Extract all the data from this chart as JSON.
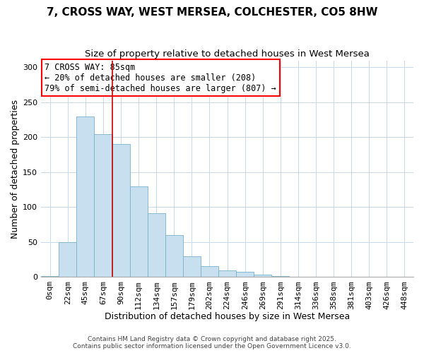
{
  "title": "7, CROSS WAY, WEST MERSEA, COLCHESTER, CO5 8HW",
  "subtitle": "Size of property relative to detached houses in West Mersea",
  "xlabel": "Distribution of detached houses by size in West Mersea",
  "ylabel": "Number of detached properties",
  "bar_labels": [
    "0sqm",
    "22sqm",
    "45sqm",
    "67sqm",
    "90sqm",
    "112sqm",
    "134sqm",
    "157sqm",
    "179sqm",
    "202sqm",
    "224sqm",
    "246sqm",
    "269sqm",
    "291sqm",
    "314sqm",
    "336sqm",
    "358sqm",
    "381sqm",
    "403sqm",
    "426sqm",
    "448sqm"
  ],
  "bar_values": [
    1,
    50,
    230,
    205,
    190,
    130,
    91,
    60,
    30,
    16,
    10,
    8,
    4,
    1,
    0.5,
    0.2,
    0,
    0,
    0,
    0,
    0
  ],
  "bar_color": "#c8dff0",
  "bar_edgecolor": "#7ab0cc",
  "annotation_title": "7 CROSS WAY: 85sqm",
  "annotation_line1": "← 20% of detached houses are smaller (208)",
  "annotation_line2": "79% of semi-detached houses are larger (807) →",
  "vline_x": 3.5,
  "vline_color": "#cc0000",
  "ylim": [
    0,
    310
  ],
  "yticks": [
    0,
    50,
    100,
    150,
    200,
    250,
    300
  ],
  "background_color": "#ffffff",
  "grid_color": "#c8d8ec",
  "footer1": "Contains HM Land Registry data © Crown copyright and database right 2025.",
  "footer2": "Contains public sector information licensed under the Open Government Licence v3.0.",
  "title_fontsize": 11,
  "subtitle_fontsize": 9.5,
  "xlabel_fontsize": 9,
  "ylabel_fontsize": 9,
  "tick_fontsize": 8,
  "annotation_fontsize": 8.5,
  "footer_fontsize": 6.5
}
